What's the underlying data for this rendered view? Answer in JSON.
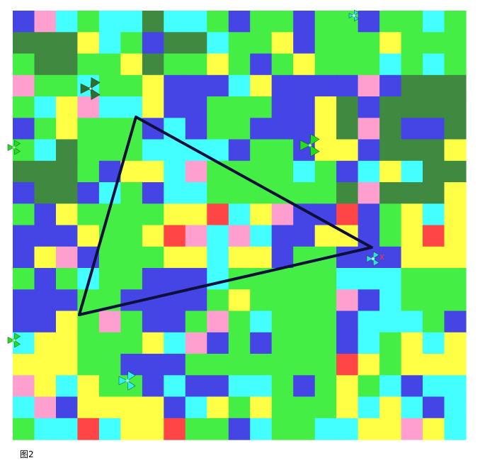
{
  "caption": "图2",
  "marker": "x"
}
